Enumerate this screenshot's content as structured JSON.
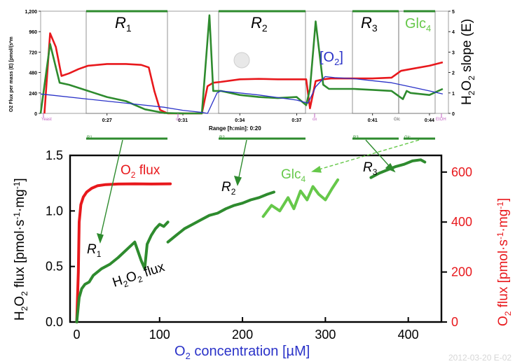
{
  "colors": {
    "o2_flux": "#e8181c",
    "h2o2_flux": "#2e8b2e",
    "glc_flux": "#66c84a",
    "o2_conc": "#2a32c8",
    "axis": "#000000",
    "bracket": "#2e8b2e",
    "marker": "#c060c0"
  },
  "chart_data": [
    {
      "type": "line",
      "title": "",
      "ylabel_left": "O2 Flux per mass (E) [pmol/(s*m",
      "ylabel_right_main": "H",
      "ylabel_right_sub": "2",
      "ylabel_right_o": "O",
      "ylabel_right_sub2": "2",
      "ylabel_right_rest": " slope (E)",
      "xlabel": "Range [h:min]: 0:20",
      "y_ticks_left": [
        "0",
        "240",
        "480",
        "720",
        "960",
        "1,200"
      ],
      "y_ticks_right": [
        "0",
        "1",
        "2",
        "3",
        "4",
        "5"
      ],
      "ylim_left": [
        0,
        1200
      ],
      "ylim_right": [
        0,
        5
      ],
      "x_ticks": [
        "0:27",
        "0:31",
        "0:34",
        "0:37",
        "0:41",
        "0:44"
      ],
      "x_tick_values": [
        27,
        31,
        34,
        37,
        41,
        44
      ],
      "xlim": [
        23.5,
        45
      ],
      "region_labels": [
        {
          "main": "R",
          "sub": "1"
        },
        {
          "main": "R",
          "sub": "2"
        },
        {
          "main": "R",
          "sub": "3"
        },
        {
          "main": "Glc",
          "sub": "4"
        }
      ],
      "o2_annotation": {
        "open": "[O",
        "sub": "2",
        "close": "]"
      },
      "event_markers": [
        "Yeast",
        "ox",
        "ox",
        "Glc",
        "EtOH"
      ],
      "bottom_markers": [
        "R1",
        "R2",
        "R3",
        "Glc"
      ],
      "series": [
        {
          "name": "O2 Flux per mass",
          "color_key": "o2_flux",
          "x": [
            23.7,
            24.0,
            24.3,
            24.6,
            25.0,
            25.5,
            26.0,
            27.0,
            28.0,
            28.8,
            29.2,
            29.5,
            29.8,
            30.2,
            31.0,
            32.0,
            32.3,
            32.6,
            33.0,
            34.0,
            35.0,
            36.0,
            37.0,
            37.5,
            37.7,
            38.0,
            38.4,
            38.8,
            39.0,
            40.0,
            41.0,
            42.0,
            42.5,
            43.0,
            44.0,
            44.7
          ],
          "values": [
            0,
            940,
            780,
            440,
            470,
            520,
            560,
            580,
            580,
            570,
            540,
            260,
            40,
            0,
            0,
            0,
            320,
            360,
            370,
            400,
            405,
            400,
            400,
            400,
            60,
            380,
            400,
            410,
            410,
            410,
            410,
            420,
            500,
            520,
            560,
            600
          ]
        },
        {
          "name": "H2O2 slope",
          "color_key": "h2o2_flux",
          "x": [
            23.5,
            24.0,
            24.5,
            25.0,
            26.0,
            27.0,
            28.0,
            29.0,
            30.0,
            31.0,
            32.0,
            32.4,
            32.6,
            33.0,
            34.0,
            35.0,
            36.0,
            37.0,
            37.5,
            37.7,
            38.0,
            38.4,
            38.7,
            39.0,
            40.0,
            41.0,
            42.0,
            42.6,
            42.8,
            43.0,
            44.0,
            44.7
          ],
          "values": [
            0,
            3.4,
            1.5,
            1.4,
            1.1,
            0.8,
            0.6,
            0.2,
            0.02,
            0,
            0,
            4.8,
            1.1,
            1.1,
            0.9,
            0.8,
            0.75,
            0.8,
            0.4,
            1.2,
            4.5,
            1.4,
            1.2,
            1.2,
            1.2,
            1.15,
            1.1,
            0.7,
            1.1,
            1.0,
            0.9,
            1.2
          ]
        },
        {
          "name": "O2 concentration",
          "color_key": "o2_conc",
          "x": [
            23.5,
            24.0,
            26.0,
            28.0,
            30.0,
            31.0,
            32.0,
            32.3,
            32.8,
            33.0,
            35.0,
            37.0,
            37.6,
            38.0,
            38.5,
            39.0,
            40.0,
            41.0,
            42.0,
            43.0,
            44.0,
            44.7
          ],
          "values": [
            0.95,
            0.9,
            0.7,
            0.5,
            0.3,
            0.15,
            0.05,
            0.0,
            1.0,
            1.1,
            0.9,
            0.65,
            0.5,
            1.3,
            1.8,
            1.75,
            1.7,
            1.6,
            1.5,
            1.3,
            1.1,
            0.95
          ]
        }
      ]
    },
    {
      "type": "line",
      "title": "",
      "xlabel_main": "O",
      "xlabel_sub": "2",
      "xlabel_rest": " concentration [µM]",
      "ylabel_left": {
        "h": "H",
        "s1": "2",
        "o": "O",
        "s2": "2",
        "rest": " flux [pmol·s",
        "sup1": "-1",
        "mid": "·mg",
        "sup2": "-1",
        "end": "]"
      },
      "ylabel_right": {
        "o": "O",
        "s": "2",
        "rest": " flux [pmol·s",
        "sup1": "-1",
        "mid": "·mg",
        "sup2": "-1",
        "end": "]"
      },
      "xlim": [
        -8,
        440
      ],
      "ylim_left": [
        0,
        1.5
      ],
      "ylim_right": [
        0,
        666.7
      ],
      "x_ticks": [
        0,
        100,
        200,
        300,
        400
      ],
      "y_ticks_left": [
        "0.0",
        "0.5",
        "1.0",
        "1.5"
      ],
      "y_ticks_left_values": [
        0,
        0.5,
        1.0,
        1.5
      ],
      "y_ticks_right": [
        "0",
        "200",
        "400",
        "600"
      ],
      "y_ticks_right_values": [
        0,
        200,
        400,
        600
      ],
      "labels": {
        "o2_flux": {
          "main": "O",
          "sub": "2",
          "rest": " flux"
        },
        "h2o2_flux": {
          "main": "H",
          "sub": "2",
          "o": "O",
          "sub2": "2",
          "rest": " flux"
        },
        "r1": {
          "main": "R",
          "sub": "1"
        },
        "r2": {
          "main": "R",
          "sub": "2"
        },
        "r3": {
          "main": "R",
          "sub": "3"
        },
        "glc4": {
          "main": "Glc",
          "sub": "4"
        }
      },
      "series": [
        {
          "name": "O2 flux",
          "color_key": "o2_flux",
          "x": [
            0,
            2,
            3,
            5,
            8,
            12,
            18,
            25,
            35,
            50,
            70,
            90,
            113
          ],
          "values": [
            0,
            200,
            400,
            470,
            500,
            520,
            535,
            545,
            550,
            552,
            553,
            552,
            553
          ]
        },
        {
          "name": "H2O2 flux R1",
          "color_key": "h2o2_flux",
          "x": [
            0,
            3,
            6,
            10,
            15,
            20,
            30,
            40,
            50,
            60,
            70,
            78,
            82,
            85,
            90,
            95,
            100,
            105,
            110
          ],
          "values": [
            0,
            0.22,
            0.3,
            0.34,
            0.36,
            0.42,
            0.48,
            0.52,
            0.58,
            0.65,
            0.72,
            0.55,
            0.48,
            0.7,
            0.78,
            0.84,
            0.88,
            0.86,
            0.9
          ]
        },
        {
          "name": "H2O2 flux R2",
          "color_key": "h2o2_flux",
          "x": [
            110,
            120,
            130,
            140,
            150,
            160,
            170,
            180,
            190,
            200,
            210,
            220,
            230,
            238
          ],
          "values": [
            0.72,
            0.78,
            0.84,
            0.88,
            0.92,
            0.96,
            0.98,
            1.02,
            1.05,
            1.07,
            1.1,
            1.12,
            1.15,
            1.17
          ]
        },
        {
          "name": "Glc4",
          "color_key": "glc_flux",
          "x": [
            225,
            235,
            245,
            255,
            262,
            270,
            278,
            285,
            292,
            300,
            308,
            315
          ],
          "values": [
            0.95,
            1.05,
            1.0,
            1.12,
            1.02,
            1.18,
            1.1,
            1.22,
            1.15,
            1.1,
            1.2,
            1.28
          ]
        },
        {
          "name": "R3",
          "color_key": "h2o2_flux",
          "x": [
            355,
            365,
            375,
            385,
            395,
            405,
            415,
            420
          ],
          "values": [
            1.3,
            1.34,
            1.37,
            1.4,
            1.42,
            1.45,
            1.46,
            1.44
          ]
        }
      ]
    }
  ],
  "footer": {
    "stamp": "2012-03-20 E-02"
  },
  "header_fragment": "H2O2 ... [O2]"
}
